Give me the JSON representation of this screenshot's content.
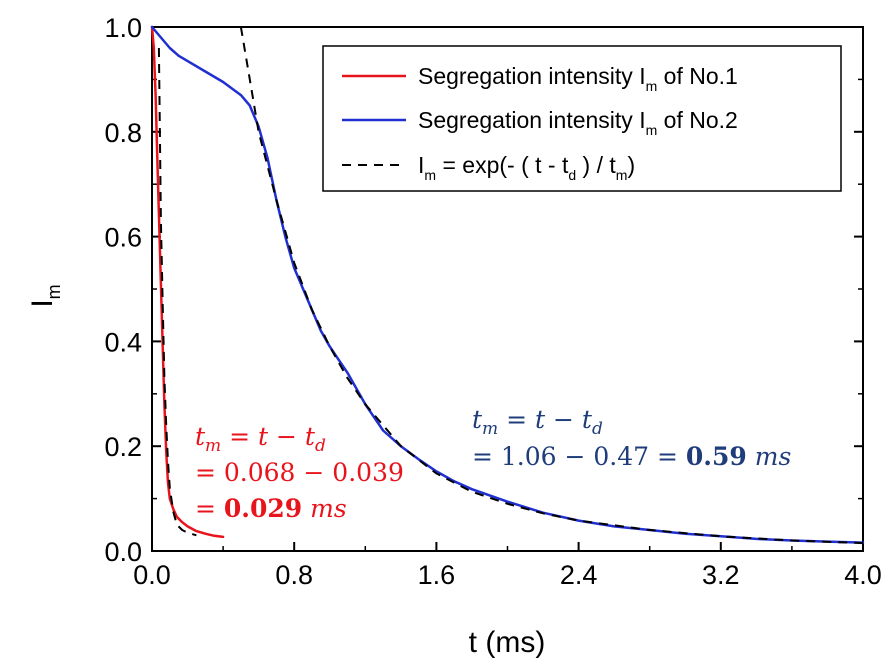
{
  "chart_data": {
    "type": "line",
    "xlabel": {
      "main": "t (ms)"
    },
    "ylabel": {
      "main": "I",
      "sub": "m"
    },
    "xlim": [
      0,
      4.0
    ],
    "ylim": [
      0,
      1.0
    ],
    "xticks": [
      "0.0",
      "0.8",
      "1.6",
      "2.4",
      "3.2",
      "4.0"
    ],
    "yticks": [
      "0.0",
      "0.2",
      "0.4",
      "0.6",
      "0.8",
      "1.0"
    ],
    "legend_position": "top-right",
    "legend": [
      {
        "pre": "Segregation intensity I",
        "sub": "m",
        "post": " of No.1"
      },
      {
        "pre": "Segregation intensity I",
        "sub": "m",
        "post": " of No.2"
      },
      {
        "pre": "I",
        "sub": "m",
        "mid": " = exp(- ( t - t",
        "sub2": "d",
        "mid2": " ) / t",
        "sub3": "m",
        "post": ")"
      }
    ],
    "series": [
      {
        "color": "#e8141c",
        "style": "solid",
        "x": [
          0.0,
          0.01,
          0.02,
          0.03,
          0.04,
          0.05,
          0.06,
          0.07,
          0.08,
          0.09,
          0.1,
          0.12,
          0.14,
          0.17,
          0.2,
          0.25,
          0.3,
          0.35,
          0.4
        ],
        "y": [
          1.0,
          0.96,
          0.87,
          0.75,
          0.63,
          0.51,
          0.39,
          0.28,
          0.19,
          0.13,
          0.1,
          0.08,
          0.065,
          0.055,
          0.047,
          0.038,
          0.033,
          0.029,
          0.027
        ]
      },
      {
        "color": "#1f2fd1",
        "style": "solid",
        "x": [
          0.0,
          0.05,
          0.1,
          0.15,
          0.2,
          0.3,
          0.4,
          0.5,
          0.55,
          0.6,
          0.65,
          0.7,
          0.75,
          0.8,
          0.85,
          0.9,
          0.95,
          1.0,
          1.05,
          1.1,
          1.2,
          1.3,
          1.4,
          1.5,
          1.6,
          1.7,
          1.8,
          2.0,
          2.2,
          2.4,
          2.6,
          2.8,
          3.0,
          3.2,
          3.4,
          3.6,
          3.8,
          4.0
        ],
        "y": [
          1.0,
          0.98,
          0.96,
          0.945,
          0.935,
          0.915,
          0.895,
          0.87,
          0.85,
          0.81,
          0.75,
          0.67,
          0.6,
          0.54,
          0.5,
          0.46,
          0.42,
          0.39,
          0.365,
          0.34,
          0.28,
          0.23,
          0.2,
          0.175,
          0.152,
          0.133,
          0.118,
          0.094,
          0.073,
          0.058,
          0.047,
          0.04,
          0.033,
          0.028,
          0.023,
          0.02,
          0.018,
          0.016
        ]
      },
      {
        "color": "#000000",
        "style": "dashed",
        "x": [
          0.039,
          0.05,
          0.06,
          0.07,
          0.08,
          0.09,
          0.1,
          0.12,
          0.14,
          0.17,
          0.2,
          0.25
        ],
        "y": [
          0.96,
          0.63,
          0.47,
          0.33,
          0.24,
          0.17,
          0.12,
          0.075,
          0.05,
          0.04,
          0.035,
          0.03
        ]
      },
      {
        "color": "#000000",
        "style": "dashed",
        "x": [
          0.5,
          0.55,
          0.6,
          0.7,
          0.8,
          0.9,
          1.0,
          1.1,
          1.2,
          1.4,
          1.6,
          1.8,
          2.0,
          2.2,
          2.4,
          2.8,
          3.2,
          3.6,
          4.0
        ],
        "y": [
          1.0,
          0.9,
          0.8,
          0.67,
          0.55,
          0.46,
          0.39,
          0.33,
          0.28,
          0.2,
          0.148,
          0.113,
          0.09,
          0.072,
          0.058,
          0.04,
          0.028,
          0.02,
          0.015
        ]
      }
    ],
    "annotations": [
      {
        "color": "#e8141c",
        "line1": {
          "a": "t",
          "a_sub": "m",
          "eq": " = ",
          "b": "t",
          "minus": " − ",
          "c": "t",
          "c_sub": "d"
        },
        "line2": "= 0.068 − 0.039",
        "line3": {
          "eq": "= ",
          "bold": "0.029",
          "unit": " ms"
        }
      },
      {
        "color": "#1f3d7a",
        "line1": {
          "a": "t",
          "a_sub": "m",
          "eq": " = ",
          "b": "t",
          "minus": " − ",
          "c": "t",
          "c_sub": "d"
        },
        "line2": {
          "pre": "= 1.06 − 0.47 = ",
          "bold": "0.59",
          "unit": " ms"
        }
      }
    ]
  }
}
